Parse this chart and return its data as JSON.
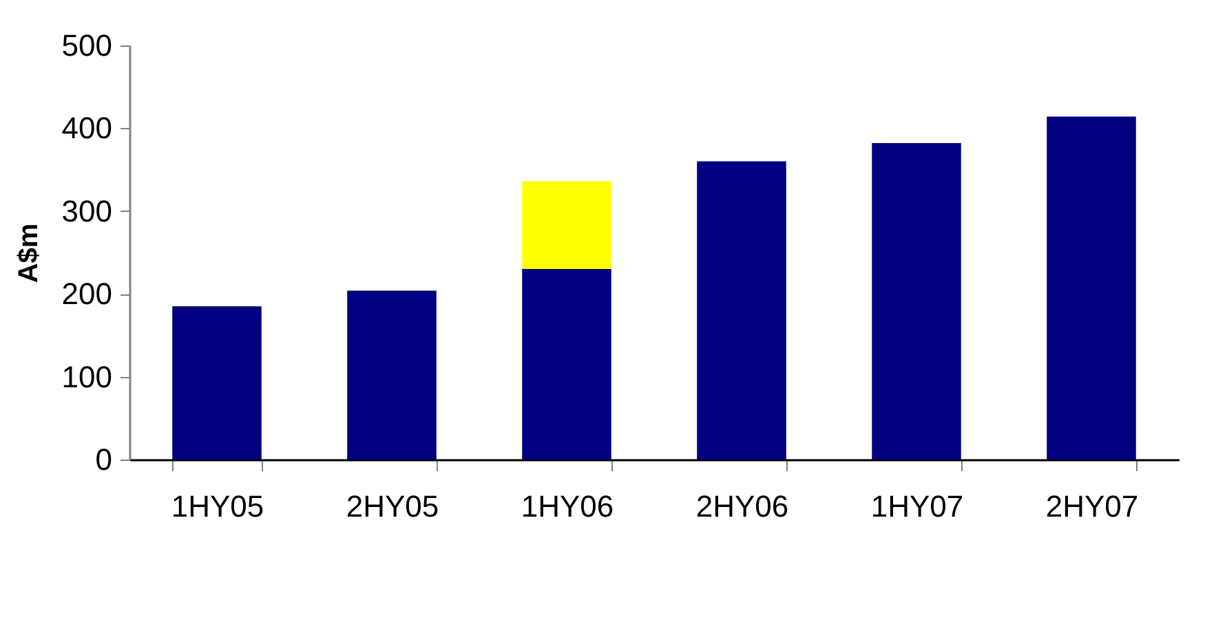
{
  "chart_data": {
    "type": "bar",
    "stacked": true,
    "ylabel": "A$m",
    "categories": [
      "1HY05",
      "2HY05",
      "1HY06",
      "2HY06",
      "1HY07",
      "2HY07"
    ],
    "series": [
      {
        "color": "#000080",
        "values": [
          185,
          204,
          230,
          360,
          382,
          414
        ]
      },
      {
        "color": "#ffff00",
        "values": [
          null,
          null,
          106,
          null,
          null,
          null
        ]
      }
    ],
    "ylim": [
      0,
      500
    ],
    "yticks": [
      0,
      100,
      200,
      300,
      400,
      500
    ],
    "grid": false,
    "legend": false
  }
}
